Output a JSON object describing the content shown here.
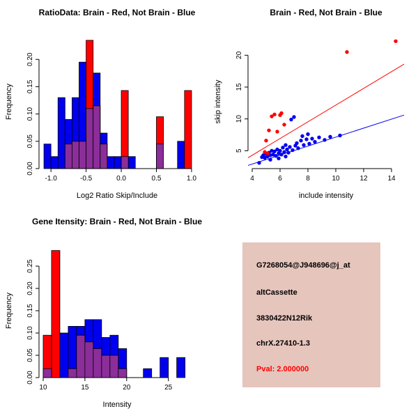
{
  "colors": {
    "red": "#FF0000",
    "blue": "#0000EE",
    "overlap": "#8B2E99",
    "info_bg": "#E6C5BC",
    "pval": "#FF0000",
    "axis": "#000000"
  },
  "panels": {
    "info": {
      "lines": [
        "G7268054@J948696@j_at",
        "altCassette",
        "3830422N12Rik",
        "chrX.27410-1.3"
      ],
      "pval": "Pval: 2.000000"
    }
  },
  "chart_data": [
    {
      "id": "ratio-hist",
      "type": "bar",
      "title": "RatioData: Brain - Red, Not Brain - Blue",
      "xlabel": "Log2 Ratio Skip/Include",
      "ylabel": "Frequency",
      "xlim": [
        -1.17,
        1.05
      ],
      "ylim": [
        0,
        0.245
      ],
      "xticks": [
        -1.0,
        -0.5,
        0.0,
        0.5,
        1.0
      ],
      "xtick_labels": [
        "-1.0",
        "-0.5",
        "0.0",
        "0.5",
        "1.0"
      ],
      "yticks": [
        0,
        0.05,
        0.1,
        0.15,
        0.2
      ],
      "ytick_labels": [
        "0.00",
        "0.05",
        "0.10",
        "0.15",
        "0.20"
      ],
      "bin_width": 0.1,
      "bins": [
        -1.1,
        -1.0,
        -0.9,
        -0.8,
        -0.7,
        -0.6,
        -0.5,
        -0.4,
        -0.3,
        -0.2,
        -0.1,
        0.0,
        0.1,
        0.2,
        0.3,
        0.4,
        0.5,
        0.6,
        0.7,
        0.8,
        0.9
      ],
      "series": [
        {
          "name": "Not Brain",
          "color": "blue",
          "values": [
            0.045,
            0.022,
            0.13,
            0.09,
            0.13,
            0.195,
            0.11,
            0.175,
            0.065,
            0.022,
            0.022,
            0.022,
            0.022,
            0,
            0,
            0,
            0.045,
            0,
            0,
            0.05,
            0
          ]
        },
        {
          "name": "Brain",
          "color": "red",
          "values": [
            0,
            0,
            0,
            0.045,
            0.05,
            0.05,
            0.235,
            0.115,
            0.045,
            0,
            0,
            0.143,
            0,
            0,
            0,
            0,
            0.095,
            0,
            0,
            0,
            0.143
          ]
        }
      ]
    },
    {
      "id": "scatter",
      "type": "scatter",
      "title": "Brain - Red, Not Brain - Blue",
      "xlabel": "include intensity",
      "ylabel": "skip intensity",
      "xlim": [
        3.7,
        14.9
      ],
      "ylim": [
        2.2,
        23.2
      ],
      "xticks": [
        4,
        6,
        8,
        10,
        12,
        14
      ],
      "xtick_labels": [
        "4",
        "6",
        "8",
        "10",
        "12",
        "14"
      ],
      "yticks": [
        5,
        10,
        15,
        20
      ],
      "ytick_labels": [
        "5",
        "10",
        "15",
        "20"
      ],
      "series": [
        {
          "name": "Not Brain",
          "color": "blue",
          "points": [
            [
              4.5,
              3.1
            ],
            [
              4.7,
              4.0
            ],
            [
              4.8,
              4.3
            ],
            [
              4.9,
              3.9
            ],
            [
              5.0,
              4.5
            ],
            [
              5.1,
              4.1
            ],
            [
              5.2,
              4.7
            ],
            [
              5.3,
              4.3
            ],
            [
              5.3,
              3.6
            ],
            [
              5.4,
              5.0
            ],
            [
              5.5,
              4.4
            ],
            [
              5.6,
              4.9
            ],
            [
              5.7,
              4.2
            ],
            [
              5.8,
              5.2
            ],
            [
              5.9,
              4.6
            ],
            [
              5.9,
              3.8
            ],
            [
              6.0,
              5.0
            ],
            [
              6.1,
              4.4
            ],
            [
              6.2,
              5.5
            ],
            [
              6.3,
              4.8
            ],
            [
              6.4,
              5.9
            ],
            [
              6.4,
              4.1
            ],
            [
              6.5,
              5.2
            ],
            [
              6.6,
              4.7
            ],
            [
              6.7,
              5.6
            ],
            [
              6.8,
              9.9
            ],
            [
              6.9,
              5.1
            ],
            [
              7.0,
              10.3
            ],
            [
              7.1,
              5.8
            ],
            [
              7.2,
              6.2
            ],
            [
              7.3,
              5.4
            ],
            [
              7.5,
              6.6
            ],
            [
              7.6,
              7.3
            ],
            [
              7.7,
              5.9
            ],
            [
              7.9,
              6.8
            ],
            [
              8.0,
              7.6
            ],
            [
              8.1,
              6.1
            ],
            [
              8.3,
              6.9
            ],
            [
              8.5,
              6.4
            ],
            [
              8.8,
              7.1
            ],
            [
              9.2,
              6.7
            ],
            [
              9.6,
              7.2
            ],
            [
              10.3,
              7.4
            ]
          ]
        },
        {
          "name": "Brain",
          "color": "red",
          "points": [
            [
              4.9,
              4.8
            ],
            [
              5.1,
              4.6
            ],
            [
              5.0,
              6.6
            ],
            [
              5.2,
              8.2
            ],
            [
              5.4,
              10.4
            ],
            [
              5.6,
              10.7
            ],
            [
              5.8,
              8.0
            ],
            [
              6.0,
              10.6
            ],
            [
              6.1,
              10.9
            ],
            [
              6.3,
              9.1
            ],
            [
              10.8,
              20.5
            ],
            [
              14.3,
              22.2
            ]
          ]
        }
      ],
      "lines": [
        {
          "color": "red",
          "p1": [
            3.7,
            3.9
          ],
          "p2": [
            14.9,
            18.6
          ]
        },
        {
          "color": "blue",
          "p1": [
            3.7,
            2.7
          ],
          "p2": [
            14.9,
            10.6
          ]
        }
      ]
    },
    {
      "id": "gene-hist",
      "type": "bar",
      "title": "Gene Itensity: Brain - Red, Not Brain - Blue",
      "xlabel": "Intensity",
      "ylabel": "Frequency",
      "xlim": [
        9.5,
        28.2
      ],
      "ylim": [
        0,
        0.3
      ],
      "xticks": [
        10,
        15,
        20,
        25
      ],
      "xtick_labels": [
        "10",
        "15",
        "20",
        "25"
      ],
      "yticks": [
        0,
        0.05,
        0.1,
        0.15,
        0.2,
        0.25
      ],
      "ytick_labels": [
        "0.00",
        "0.05",
        "0.10",
        "0.15",
        "0.20",
        "0.25"
      ],
      "bin_width": 1,
      "bins": [
        10,
        11,
        12,
        13,
        14,
        15,
        16,
        17,
        18,
        19,
        20,
        21,
        22,
        23,
        24,
        25,
        26,
        27
      ],
      "series": [
        {
          "name": "Not Brain",
          "color": "blue",
          "values": [
            0.02,
            0,
            0.1,
            0.115,
            0.115,
            0.13,
            0.13,
            0.09,
            0.095,
            0.065,
            0,
            0,
            0.02,
            0,
            0.045,
            0,
            0.045,
            0
          ]
        },
        {
          "name": "Brain",
          "color": "red",
          "values": [
            0.095,
            0.285,
            0,
            0.02,
            0.095,
            0.08,
            0.065,
            0.05,
            0.05,
            0.02,
            0,
            0,
            0,
            0,
            0,
            0,
            0,
            0
          ]
        }
      ]
    }
  ]
}
